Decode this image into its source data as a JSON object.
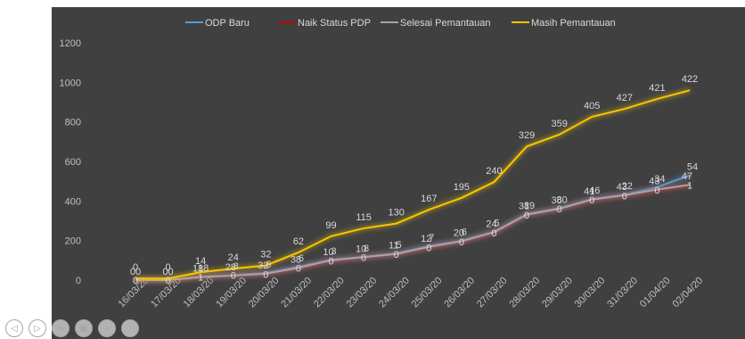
{
  "chart_data": {
    "type": "line",
    "title": "",
    "xlabel": "",
    "ylabel": "",
    "ylim": [
      0,
      1200
    ],
    "yticks": [
      0,
      200,
      400,
      600,
      800,
      1000,
      1200
    ],
    "grid": false,
    "legend_position": "top",
    "categories": [
      "16/03/20",
      "17/03/20",
      "18/03/20",
      "19/03/20",
      "20/03/20",
      "21/03/20",
      "22/03/20",
      "23/03/20",
      "24/03/20",
      "25/03/20",
      "26/03/20",
      "27/03/20",
      "28/03/20",
      "29/03/20",
      "30/03/20",
      "31/03/20",
      "01/04/20",
      "02/04/20"
    ],
    "series": [
      {
        "name": "ODP Baru",
        "color": "#5b9bd5",
        "values": [
          0,
          0,
          18,
          26,
          36,
          68,
          103,
          118,
          135,
          172,
          200,
          245,
          334,
          364,
          410,
          432,
          470,
          530
        ],
        "labels": [
          "0",
          "0",
          "18",
          "8",
          "6",
          "6",
          "3",
          "8",
          "5",
          "7",
          "6",
          "5",
          "89",
          "30",
          "46",
          "22",
          "34",
          "54"
        ]
      },
      {
        "name": "Naik Status PDP",
        "color": "#c00000",
        "values": [
          0,
          0,
          16,
          24,
          30,
          60,
          98,
          115,
          130,
          165,
          195,
          240,
          330,
          360,
          405,
          427,
          455,
          480
        ],
        "labels": [
          "0",
          "0",
          "1",
          "0",
          "0",
          "0",
          "0",
          "0",
          "0",
          "0",
          "0",
          "0",
          "0",
          "0",
          "0",
          "0",
          "0",
          "1"
        ]
      },
      {
        "name": "Selesai Pemantauan",
        "color": "#a5a5a5",
        "values": [
          0,
          0,
          15,
          23,
          32,
          62,
          100,
          116,
          132,
          168,
          196,
          242,
          331,
          361,
          407,
          429,
          458,
          482
        ],
        "labels": [
          "0",
          "0",
          "18",
          "28",
          "32",
          "38",
          "10",
          "10",
          "11",
          "12",
          "20",
          "24",
          "31",
          "36",
          "41",
          "43",
          "43",
          "47"
        ]
      },
      {
        "name": "Masih Pemantauan",
        "color": "#f7c600",
        "values": [
          0,
          0,
          14,
          24,
          32,
          62,
          99,
          115,
          130,
          167,
          195,
          240,
          329,
          359,
          405,
          427,
          421,
          422
        ],
        "plot_values": [
          8,
          8,
          40,
          58,
          74,
          140,
          222,
          262,
          286,
          356,
          416,
          496,
          676,
          736,
          826,
          866,
          916,
          960
        ],
        "labels": [
          "0",
          "0",
          "14",
          "24",
          "32",
          "62",
          "99",
          "115",
          "130",
          "167",
          "195",
          "240",
          "329",
          "359",
          "405",
          "427",
          "421",
          "422"
        ]
      }
    ]
  },
  "toolbar": {
    "icons": [
      "prev-icon",
      "next-icon",
      "pen-icon",
      "slides-icon",
      "zoom-icon",
      "more-icon"
    ],
    "glyphs": [
      "◁",
      "▷",
      "✎",
      "▣",
      "⌕",
      "⋯"
    ]
  }
}
